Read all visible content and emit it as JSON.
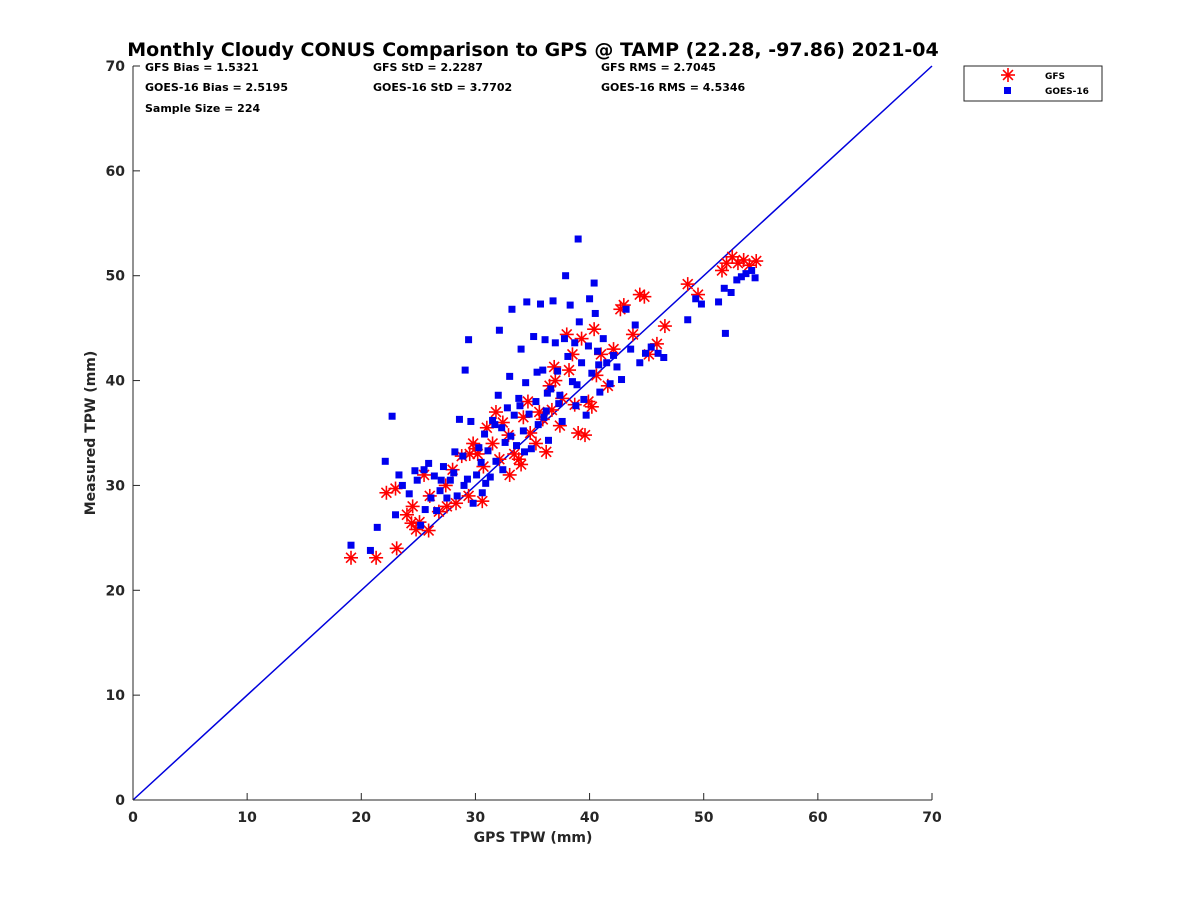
{
  "chart_data": {
    "type": "scatter",
    "title": "Monthly Cloudy CONUS Comparison to GPS @ TAMP (22.28, -97.86) 2021-04",
    "xlabel": "GPS TPW (mm)",
    "ylabel": "Measured TPW (mm)",
    "xlim": [
      0,
      70
    ],
    "ylim": [
      0,
      70
    ],
    "xticks": [
      "0",
      "10",
      "20",
      "30",
      "40",
      "50",
      "60",
      "70"
    ],
    "yticks": [
      "0",
      "10",
      "20",
      "30",
      "40",
      "50",
      "60",
      "70"
    ],
    "grid": false,
    "legend_position": "top-right outside",
    "stats": {
      "gfs_bias": "GFS Bias = 1.5321",
      "goes_bias": "GOES-16 Bias = 2.5195",
      "sample_size": "Sample Size = 224",
      "gfs_std": "GFS StD = 2.2287",
      "goes_std": "GOES-16 StD = 3.7702",
      "gfs_rms": "GFS RMS = 2.7045",
      "goes_rms": "GOES-16 RMS = 4.5346"
    },
    "reference_line": {
      "x": [
        0,
        70
      ],
      "y": [
        0,
        70
      ],
      "color": "#0000dd"
    },
    "series": [
      {
        "name": "GFS",
        "marker": "asterisk",
        "color": "#ff0000",
        "points": [
          [
            19.1,
            23.1
          ],
          [
            21.3,
            23.1
          ],
          [
            23.1,
            24.0
          ],
          [
            22.2,
            29.3
          ],
          [
            23.0,
            29.7
          ],
          [
            24.0,
            27.2
          ],
          [
            24.4,
            26.4
          ],
          [
            24.8,
            25.8
          ],
          [
            24.5,
            28.0
          ],
          [
            25.1,
            26.5
          ],
          [
            25.9,
            25.7
          ],
          [
            26.0,
            29.0
          ],
          [
            25.5,
            31.0
          ],
          [
            26.8,
            27.5
          ],
          [
            27.4,
            30.0
          ],
          [
            28.0,
            31.5
          ],
          [
            28.8,
            32.8
          ],
          [
            28.3,
            28.3
          ],
          [
            29.4,
            29.0
          ],
          [
            29.5,
            33.0
          ],
          [
            29.8,
            34.0
          ],
          [
            30.2,
            33.0
          ],
          [
            30.7,
            31.8
          ],
          [
            30.6,
            28.5
          ],
          [
            31.0,
            35.5
          ],
          [
            31.5,
            34.0
          ],
          [
            32.1,
            32.5
          ],
          [
            32.4,
            36.0
          ],
          [
            32.9,
            34.8
          ],
          [
            33.4,
            33.0
          ],
          [
            33.8,
            32.5
          ],
          [
            34.0,
            32.0
          ],
          [
            34.2,
            36.5
          ],
          [
            34.6,
            38.0
          ],
          [
            34.8,
            35.0
          ],
          [
            35.3,
            34.0
          ],
          [
            35.6,
            37.0
          ],
          [
            35.9,
            36.3
          ],
          [
            36.2,
            33.2
          ],
          [
            36.5,
            39.5
          ],
          [
            36.7,
            37.2
          ],
          [
            36.9,
            41.3
          ],
          [
            37.4,
            35.7
          ],
          [
            37.6,
            38.3
          ],
          [
            38.0,
            44.4
          ],
          [
            38.2,
            41.0
          ],
          [
            38.5,
            42.5
          ],
          [
            38.7,
            37.7
          ],
          [
            39.0,
            35.0
          ],
          [
            39.3,
            44.0
          ],
          [
            39.6,
            34.8
          ],
          [
            39.9,
            38.0
          ],
          [
            40.2,
            37.5
          ],
          [
            40.4,
            44.9
          ],
          [
            40.6,
            40.5
          ],
          [
            41.0,
            42.5
          ],
          [
            41.6,
            39.5
          ],
          [
            42.1,
            43.0
          ],
          [
            42.7,
            46.8
          ],
          [
            43.0,
            47.2
          ],
          [
            43.8,
            44.4
          ],
          [
            44.4,
            48.2
          ],
          [
            44.8,
            48.0
          ],
          [
            45.2,
            42.5
          ],
          [
            45.9,
            43.5
          ],
          [
            46.6,
            45.2
          ],
          [
            48.6,
            49.2
          ],
          [
            49.5,
            48.2
          ],
          [
            51.6,
            50.5
          ],
          [
            52.0,
            51.2
          ],
          [
            52.5,
            51.8
          ],
          [
            53.0,
            51.2
          ],
          [
            53.5,
            51.5
          ],
          [
            54.0,
            51.0
          ],
          [
            54.6,
            51.4
          ],
          [
            27.5,
            28.0
          ],
          [
            30.0,
            33.5
          ],
          [
            33.0,
            31.0
          ],
          [
            31.8,
            37.0
          ],
          [
            37.0,
            40.0
          ]
        ]
      },
      {
        "name": "GOES-16",
        "marker": "square",
        "color": "#0000ee",
        "points": [
          [
            19.1,
            24.3
          ],
          [
            20.8,
            23.8
          ],
          [
            21.4,
            26.0
          ],
          [
            22.1,
            32.3
          ],
          [
            22.7,
            36.6
          ],
          [
            23.0,
            27.2
          ],
          [
            23.3,
            31.0
          ],
          [
            23.6,
            30.0
          ],
          [
            24.2,
            29.2
          ],
          [
            24.7,
            31.4
          ],
          [
            24.9,
            30.5
          ],
          [
            25.2,
            26.2
          ],
          [
            25.6,
            27.7
          ],
          [
            25.9,
            32.1
          ],
          [
            26.1,
            28.8
          ],
          [
            26.4,
            30.9
          ],
          [
            26.6,
            27.6
          ],
          [
            26.9,
            29.5
          ],
          [
            27.2,
            31.8
          ],
          [
            27.5,
            28.8
          ],
          [
            27.8,
            30.5
          ],
          [
            28.1,
            31.2
          ],
          [
            28.4,
            29.0
          ],
          [
            28.6,
            36.3
          ],
          [
            28.9,
            32.8
          ],
          [
            29.1,
            41.0
          ],
          [
            29.3,
            30.6
          ],
          [
            29.4,
            43.9
          ],
          [
            29.6,
            36.1
          ],
          [
            29.8,
            28.3
          ],
          [
            30.1,
            31.0
          ],
          [
            30.3,
            33.6
          ],
          [
            30.6,
            29.3
          ],
          [
            30.8,
            34.9
          ],
          [
            31.1,
            33.3
          ],
          [
            31.3,
            30.8
          ],
          [
            31.5,
            36.2
          ],
          [
            31.8,
            32.3
          ],
          [
            32.0,
            38.6
          ],
          [
            32.1,
            44.8
          ],
          [
            32.3,
            35.5
          ],
          [
            32.6,
            34.1
          ],
          [
            32.8,
            37.4
          ],
          [
            33.0,
            40.4
          ],
          [
            33.2,
            46.8
          ],
          [
            33.4,
            36.7
          ],
          [
            33.6,
            33.8
          ],
          [
            33.8,
            38.3
          ],
          [
            34.0,
            43.0
          ],
          [
            34.2,
            35.2
          ],
          [
            34.4,
            39.8
          ],
          [
            34.5,
            47.5
          ],
          [
            34.7,
            36.8
          ],
          [
            34.9,
            33.5
          ],
          [
            35.1,
            44.2
          ],
          [
            35.3,
            38.0
          ],
          [
            35.5,
            35.8
          ],
          [
            35.7,
            47.3
          ],
          [
            35.9,
            41.0
          ],
          [
            36.1,
            43.9
          ],
          [
            36.2,
            37.1
          ],
          [
            36.4,
            34.3
          ],
          [
            36.6,
            39.2
          ],
          [
            36.8,
            47.6
          ],
          [
            37.0,
            43.6
          ],
          [
            37.2,
            40.9
          ],
          [
            37.4,
            38.6
          ],
          [
            37.6,
            36.1
          ],
          [
            37.8,
            44.0
          ],
          [
            37.9,
            50.0
          ],
          [
            38.1,
            42.3
          ],
          [
            38.3,
            47.2
          ],
          [
            38.5,
            39.9
          ],
          [
            38.7,
            43.6
          ],
          [
            38.8,
            37.6
          ],
          [
            39.0,
            53.5
          ],
          [
            39.1,
            45.6
          ],
          [
            39.3,
            41.7
          ],
          [
            39.5,
            38.2
          ],
          [
            39.7,
            36.7
          ],
          [
            39.9,
            43.3
          ],
          [
            40.0,
            47.8
          ],
          [
            40.2,
            40.7
          ],
          [
            40.4,
            49.3
          ],
          [
            40.5,
            46.4
          ],
          [
            40.7,
            42.8
          ],
          [
            40.9,
            38.9
          ],
          [
            41.2,
            44.0
          ],
          [
            41.5,
            41.7
          ],
          [
            41.8,
            39.7
          ],
          [
            42.1,
            42.4
          ],
          [
            42.4,
            41.3
          ],
          [
            42.8,
            40.1
          ],
          [
            43.2,
            46.8
          ],
          [
            43.6,
            43.0
          ],
          [
            44.0,
            45.3
          ],
          [
            44.4,
            41.7
          ],
          [
            44.9,
            42.6
          ],
          [
            45.4,
            43.2
          ],
          [
            46.0,
            42.6
          ],
          [
            46.5,
            42.2
          ],
          [
            48.6,
            45.8
          ],
          [
            49.3,
            47.8
          ],
          [
            49.8,
            47.3
          ],
          [
            51.3,
            47.5
          ],
          [
            51.8,
            48.8
          ],
          [
            51.9,
            44.5
          ],
          [
            52.4,
            48.4
          ],
          [
            52.9,
            49.6
          ],
          [
            53.3,
            49.9
          ],
          [
            53.7,
            50.2
          ],
          [
            54.2,
            50.5
          ],
          [
            54.5,
            49.8
          ],
          [
            36.0,
            36.5
          ],
          [
            34.3,
            33.2
          ],
          [
            32.4,
            31.5
          ],
          [
            30.9,
            30.2
          ],
          [
            29.0,
            30.0
          ],
          [
            27.0,
            30.5
          ],
          [
            25.5,
            31.5
          ],
          [
            28.2,
            33.2
          ],
          [
            31.7,
            35.8
          ],
          [
            33.9,
            37.6
          ],
          [
            35.4,
            40.8
          ],
          [
            37.3,
            37.8
          ],
          [
            38.9,
            39.6
          ],
          [
            40.8,
            41.5
          ],
          [
            36.3,
            38.8
          ],
          [
            33.1,
            34.7
          ],
          [
            30.5,
            32.2
          ]
        ]
      }
    ]
  }
}
